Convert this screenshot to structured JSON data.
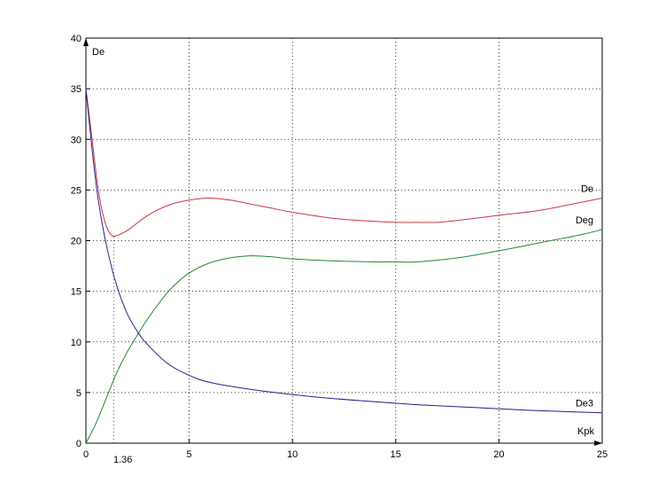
{
  "chart_data": {
    "type": "line",
    "title": "",
    "xlabel": "Kpk",
    "ylabel": "De",
    "xlim": [
      0,
      25
    ],
    "ylim": [
      0,
      40
    ],
    "xticks": [
      "0",
      "5",
      "10",
      "15",
      "20",
      "25"
    ],
    "yticks": [
      "0",
      "5",
      "10",
      "15",
      "20",
      "25",
      "30",
      "35",
      "40"
    ],
    "grid": true,
    "annotations": [
      {
        "text": "1.36",
        "x": 1.36
      }
    ],
    "series": [
      {
        "name": "De",
        "color": "#cc3344",
        "points": [
          [
            0,
            35
          ],
          [
            0.3,
            30
          ],
          [
            0.6,
            25
          ],
          [
            0.9,
            22
          ],
          [
            1.2,
            20.6
          ],
          [
            1.5,
            20.5
          ],
          [
            2,
            21
          ],
          [
            3,
            22.5
          ],
          [
            4,
            23.5
          ],
          [
            5,
            24
          ],
          [
            6,
            24.2
          ],
          [
            7,
            24
          ],
          [
            8,
            23.6
          ],
          [
            9,
            23.2
          ],
          [
            10,
            22.8
          ],
          [
            12,
            22.2
          ],
          [
            14,
            21.9
          ],
          [
            15,
            21.8
          ],
          [
            16,
            21.8
          ],
          [
            17,
            21.8
          ],
          [
            18,
            22
          ],
          [
            20,
            22.5
          ],
          [
            22,
            23
          ],
          [
            24,
            23.8
          ],
          [
            25,
            24.2
          ]
        ]
      },
      {
        "name": "Deg",
        "color": "#228833",
        "points": [
          [
            0,
            0
          ],
          [
            0.5,
            2
          ],
          [
            1,
            4.5
          ],
          [
            1.5,
            7
          ],
          [
            2,
            9
          ],
          [
            2.5,
            10.7
          ],
          [
            3,
            12.3
          ],
          [
            4,
            15
          ],
          [
            5,
            16.8
          ],
          [
            6,
            17.8
          ],
          [
            7,
            18.3
          ],
          [
            8,
            18.5
          ],
          [
            9,
            18.4
          ],
          [
            10,
            18.2
          ],
          [
            12,
            18
          ],
          [
            14,
            17.9
          ],
          [
            15,
            17.9
          ],
          [
            16,
            17.9
          ],
          [
            18,
            18.3
          ],
          [
            20,
            19
          ],
          [
            22,
            19.8
          ],
          [
            24,
            20.6
          ],
          [
            25,
            21.1
          ]
        ]
      },
      {
        "name": "De3",
        "color": "#22228a",
        "points": [
          [
            0,
            35
          ],
          [
            0.3,
            29
          ],
          [
            0.6,
            24
          ],
          [
            1,
            19.5
          ],
          [
            1.5,
            15.5
          ],
          [
            2,
            12.8
          ],
          [
            2.5,
            11
          ],
          [
            3,
            9.7
          ],
          [
            4,
            7.8
          ],
          [
            5,
            6.7
          ],
          [
            6,
            6
          ],
          [
            8,
            5.3
          ],
          [
            10,
            4.8
          ],
          [
            12,
            4.4
          ],
          [
            14,
            4.1
          ],
          [
            16,
            3.8
          ],
          [
            18,
            3.6
          ],
          [
            20,
            3.4
          ],
          [
            22,
            3.2
          ],
          [
            25,
            3
          ]
        ]
      }
    ]
  }
}
